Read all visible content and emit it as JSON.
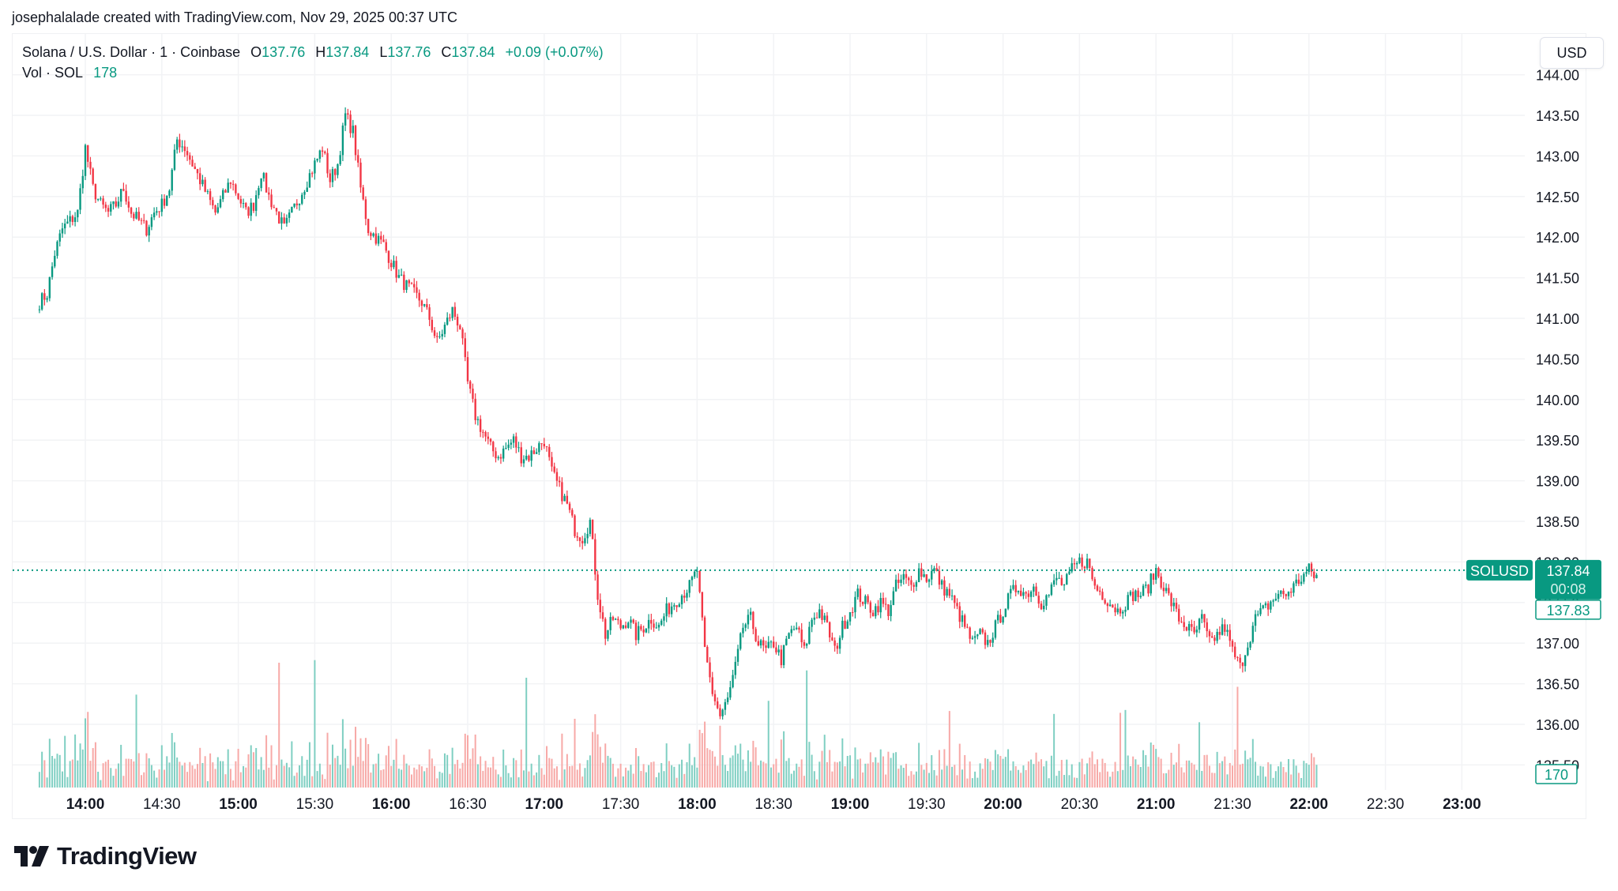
{
  "credit": "josephalalade created with TradingView.com, Nov 29, 2025 00:37 UTC",
  "legend": {
    "symbol": "Solana / U.S. Dollar · 1 · Coinbase",
    "o_label": "O",
    "o_value": "137.76",
    "h_label": "H",
    "h_value": "137.84",
    "l_label": "L",
    "l_value": "137.76",
    "c_label": "C",
    "c_value": "137.84",
    "change": "+0.09 (+0.07%)",
    "vol_label": "Vol · SOL",
    "vol_value": "178"
  },
  "currency_button": "USD",
  "price_badge": {
    "symbol": "SOLUSD",
    "price": "137.84",
    "countdown": "00:08",
    "prev": "137.83",
    "volume": "170"
  },
  "logo_text": "TradingView",
  "colors": {
    "up": "#089981",
    "down": "#f23645",
    "up_vol": "#7fcfc2",
    "down_vol": "#f7a9a7",
    "grid": "#f2f3f5",
    "badge": "#089981"
  },
  "chart_data": {
    "type": "candlestick",
    "title": "Solana / U.S. Dollar · 1 · Coinbase",
    "xlabel": "",
    "ylabel": "USD",
    "ylim": [
      135.3,
      144.3
    ],
    "y_ticks": [
      "144.00",
      "143.50",
      "143.00",
      "142.50",
      "142.00",
      "141.50",
      "141.00",
      "140.50",
      "140.00",
      "139.50",
      "139.00",
      "138.50",
      "138.00",
      "137.50",
      "137.00",
      "136.50",
      "136.00",
      "135.50"
    ],
    "x_ticks": [
      {
        "label": "14:00",
        "major": true
      },
      {
        "label": "14:30",
        "major": false
      },
      {
        "label": "15:00",
        "major": true
      },
      {
        "label": "15:30",
        "major": false
      },
      {
        "label": "16:00",
        "major": true
      },
      {
        "label": "16:30",
        "major": false
      },
      {
        "label": "17:00",
        "major": true
      },
      {
        "label": "17:30",
        "major": false
      },
      {
        "label": "18:00",
        "major": true
      },
      {
        "label": "18:30",
        "major": false
      },
      {
        "label": "19:00",
        "major": true
      },
      {
        "label": "19:30",
        "major": false
      },
      {
        "label": "20:00",
        "major": true
      },
      {
        "label": "20:30",
        "major": false
      },
      {
        "label": "21:00",
        "major": true
      },
      {
        "label": "21:30",
        "major": false
      },
      {
        "label": "22:00",
        "major": true
      },
      {
        "label": "22:30",
        "major": false
      },
      {
        "label": "23:00",
        "major": true
      }
    ],
    "start_time": "13:42",
    "bar_minutes": 3,
    "last_price": 137.84,
    "closes": [
      141.2,
      141.3,
      141.8,
      142.1,
      142.2,
      142.3,
      143.1,
      142.6,
      142.4,
      142.3,
      142.4,
      142.6,
      142.3,
      142.2,
      142.1,
      142.3,
      142.4,
      142.6,
      143.2,
      143.1,
      142.9,
      142.7,
      142.5,
      142.3,
      142.5,
      142.7,
      142.5,
      142.3,
      142.4,
      142.8,
      142.5,
      142.3,
      142.1,
      142.3,
      142.5,
      142.7,
      142.9,
      143.1,
      142.7,
      142.9,
      143.5,
      143.3,
      142.6,
      142.1,
      142.0,
      141.9,
      141.7,
      141.5,
      141.4,
      141.3,
      141.2,
      141.0,
      140.7,
      140.9,
      141.1,
      140.9,
      140.2,
      139.8,
      139.6,
      139.4,
      139.3,
      139.4,
      139.5,
      139.3,
      139.3,
      139.4,
      139.5,
      139.1,
      138.9,
      138.7,
      138.4,
      138.3,
      138.5,
      137.6,
      137.1,
      137.3,
      137.2,
      137.3,
      137.1,
      137.2,
      137.3,
      137.2,
      137.4,
      137.5,
      137.6,
      137.7,
      137.9,
      136.9,
      136.4,
      136.1,
      136.3,
      136.7,
      137.2,
      137.3,
      137.0,
      136.9,
      137.0,
      136.8,
      137.1,
      137.2,
      136.9,
      137.3,
      137.4,
      137.2,
      136.9,
      137.2,
      137.4,
      137.6,
      137.5,
      137.4,
      137.5,
      137.4,
      137.7,
      137.8,
      137.7,
      137.9,
      137.8,
      137.9,
      137.7,
      137.6,
      137.4,
      137.2,
      137.0,
      137.1,
      137.0,
      137.2,
      137.4,
      137.6,
      137.7,
      137.6,
      137.7,
      137.5,
      137.6,
      137.8,
      137.7,
      137.9,
      138.0,
      138.0,
      137.7,
      137.6,
      137.5,
      137.4,
      137.5,
      137.6,
      137.6,
      137.7,
      137.9,
      137.7,
      137.5,
      137.3,
      137.2,
      137.1,
      137.3,
      137.0,
      137.1,
      137.2,
      136.9,
      136.7,
      137.0,
      137.3,
      137.4,
      137.5,
      137.6,
      137.6,
      137.7,
      137.8,
      137.9,
      137.8
    ],
    "volume_max": 290
  }
}
